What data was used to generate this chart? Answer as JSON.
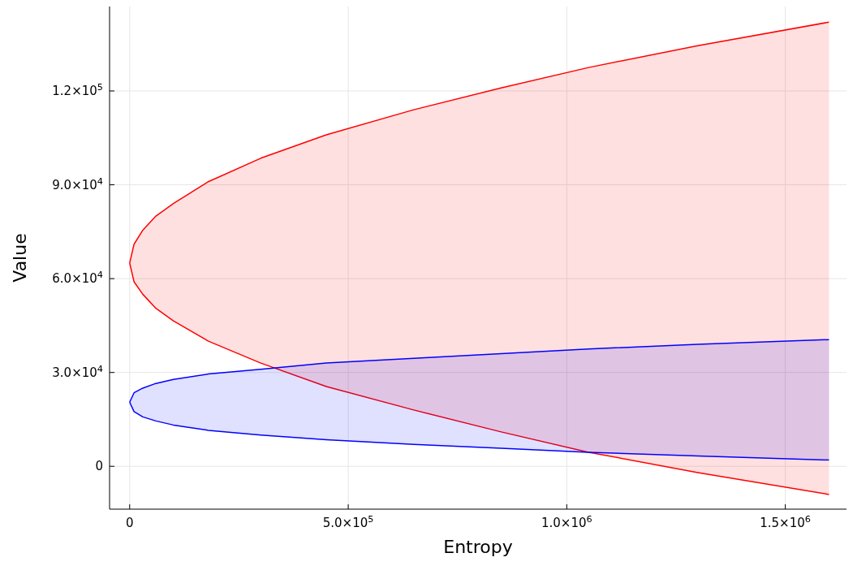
{
  "chart_data": {
    "type": "line",
    "xlabel": "Entropy",
    "ylabel": "Value",
    "x": [
      0,
      10000,
      30000,
      60000,
      100000,
      180000,
      300000,
      450000,
      650000,
      850000,
      1050000,
      1300000,
      1600000
    ],
    "series": [
      {
        "color": "#ff0000",
        "values": [
          65000,
          71000,
          75500,
          80000,
          84000,
          91000,
          98500,
          106000,
          114000,
          121000,
          127500,
          134500,
          142000
        ],
        "upper": [
          65000,
          71000,
          75500,
          80000,
          84000,
          91000,
          98500,
          106000,
          114000,
          121000,
          127500,
          134500,
          142000
        ],
        "lower": [
          65000,
          59000,
          55000,
          50500,
          46500,
          40000,
          33000,
          25500,
          18000,
          11000,
          4500,
          -2000,
          -9000
        ]
      },
      {
        "color": "#ff0000",
        "values": [
          65000,
          59000,
          55000,
          50500,
          46500,
          40000,
          33000,
          25500,
          18000,
          11000,
          4500,
          -2000,
          -9000
        ]
      },
      {
        "color": "#0000ff",
        "values": [
          20500,
          23500,
          25000,
          26500,
          27800,
          29500,
          31000,
          33000,
          34500,
          36000,
          37500,
          39000,
          40500
        ],
        "upper": [
          20500,
          23500,
          25000,
          26500,
          27800,
          29500,
          31000,
          33000,
          34500,
          36000,
          37500,
          39000,
          40500
        ],
        "lower": [
          20500,
          17500,
          15800,
          14500,
          13200,
          11500,
          10000,
          8500,
          7000,
          5800,
          4500,
          3300,
          2000
        ]
      },
      {
        "color": "#0000ff",
        "values": [
          20500,
          17500,
          15800,
          14500,
          13200,
          11500,
          10000,
          8500,
          7000,
          5800,
          4500,
          3300,
          2000
        ]
      }
    ],
    "xlim": [
      -46000,
      1640000
    ],
    "ylim": [
      -13700,
      147000
    ],
    "xticks": [
      0,
      {
        "value": 500000,
        "label": "5.0×10$^{5}$"
      },
      {
        "value": 1000000,
        "label": "1.0×10$^{6}$"
      },
      {
        "value": 1500000,
        "label": "1.5×10$^{6}$"
      }
    ],
    "yticks": [
      0,
      {
        "value": 30000,
        "label": "3.0×10$^{4}$"
      },
      {
        "value": 60000,
        "label": "6.0×10$^{4}$"
      },
      {
        "value": 90000,
        "label": "9.0×10$^{4}$"
      },
      {
        "value": 120000,
        "label": "1.2×10$^{5}$"
      }
    ],
    "grid": true
  }
}
